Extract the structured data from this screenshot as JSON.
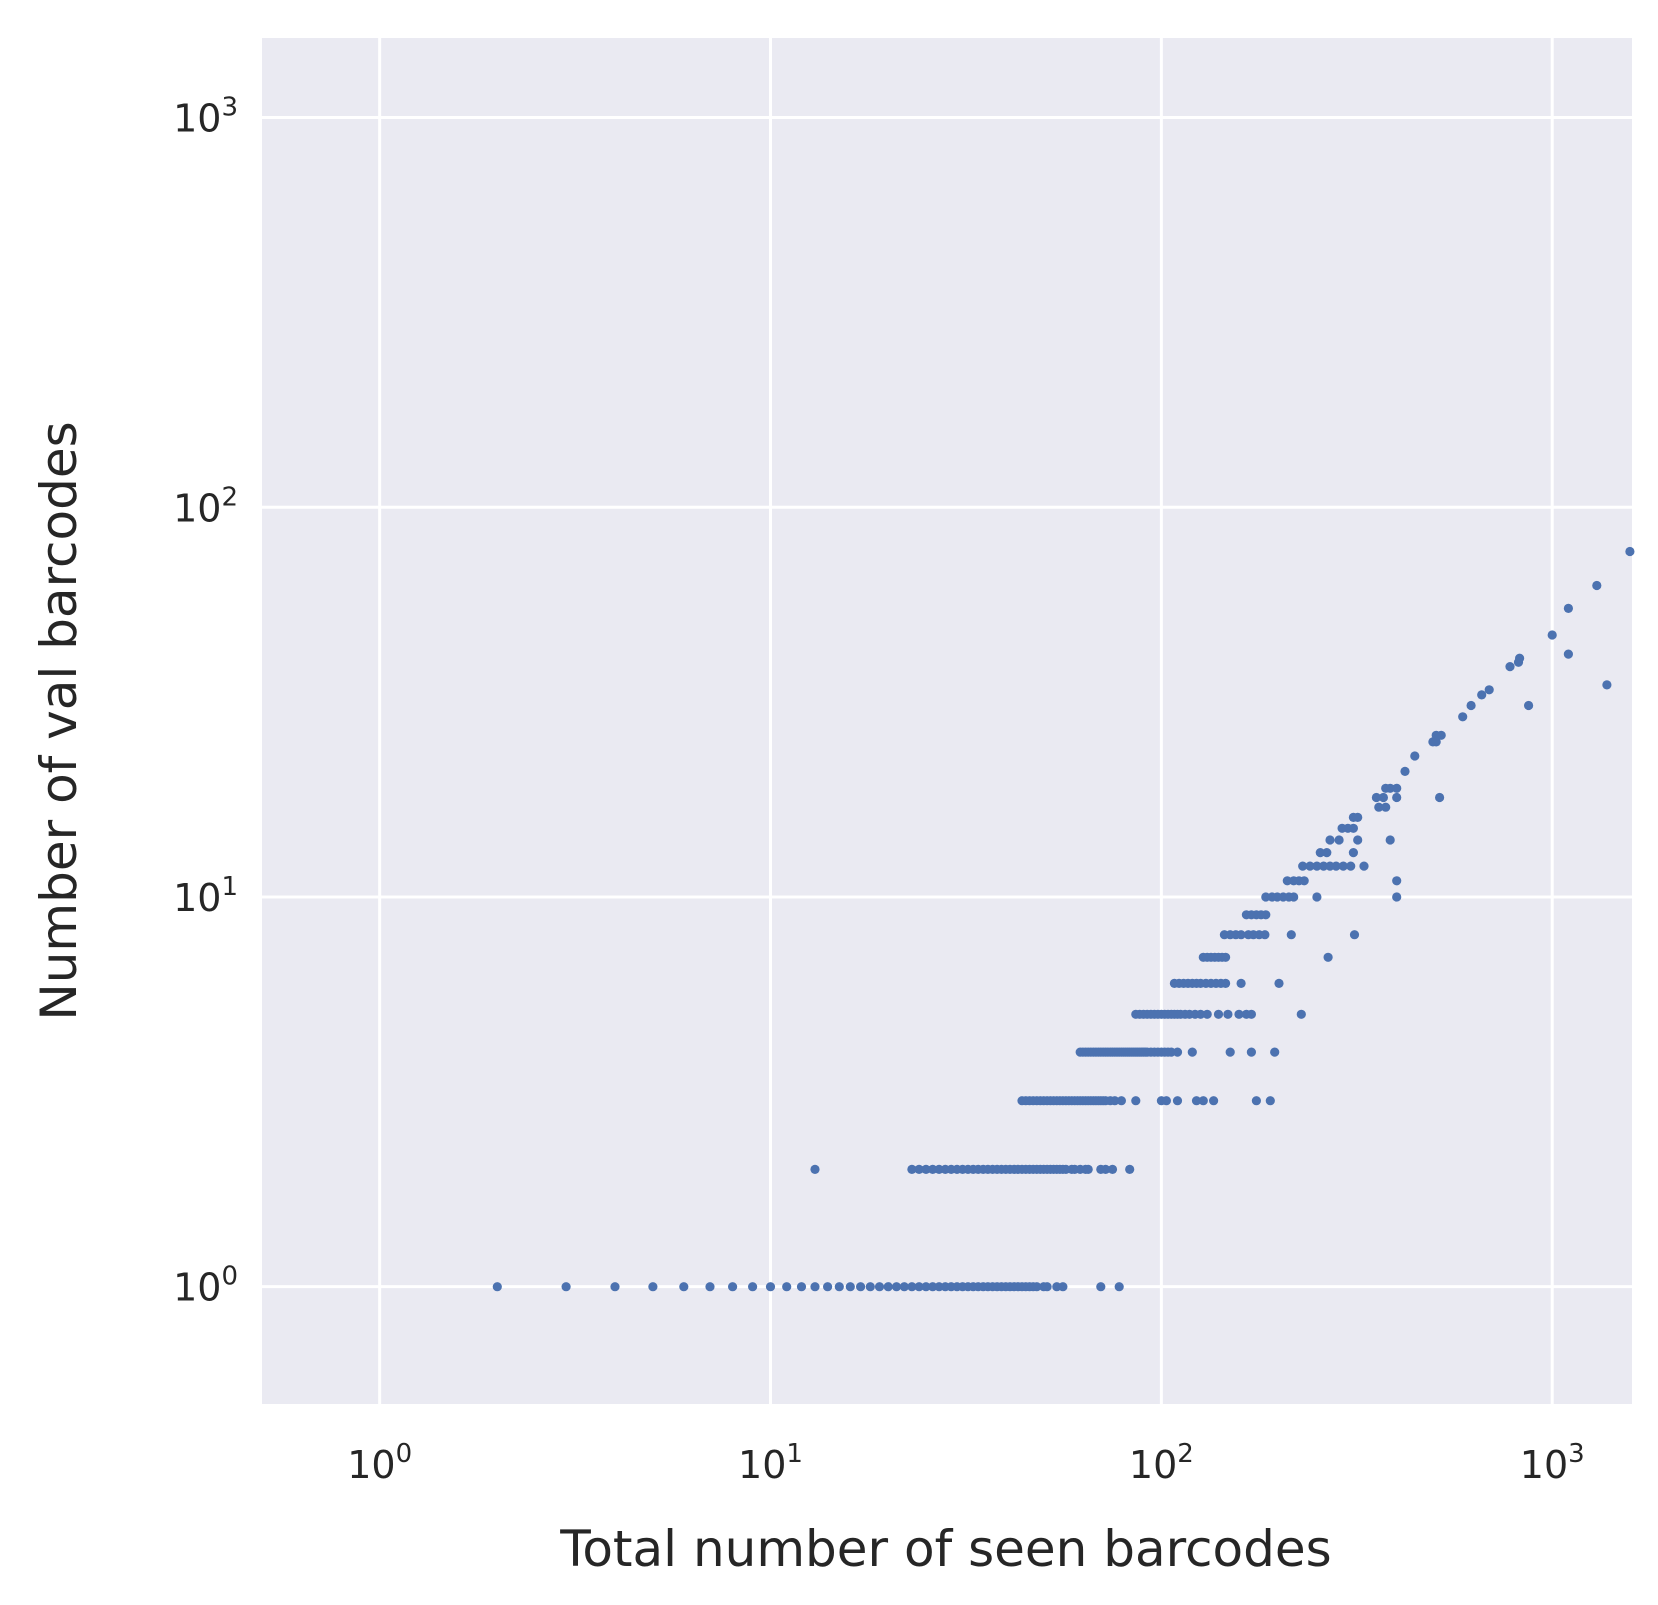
{
  "chart_data": {
    "type": "scatter",
    "xlabel": "Total number of seen barcodes",
    "ylabel": "Number of val barcodes",
    "xscale": "log",
    "yscale": "log",
    "xlim": [
      0.5,
      1600
    ],
    "ylim": [
      0.5,
      1600
    ],
    "grid": true,
    "background_color": "#EAEAF2",
    "grid_color": "#FFFFFF",
    "marker_color": "#4C72B0",
    "x_ticks": [
      {
        "value": 1,
        "base": "10",
        "exp": "0"
      },
      {
        "value": 10,
        "base": "10",
        "exp": "1"
      },
      {
        "value": 100,
        "base": "10",
        "exp": "2"
      },
      {
        "value": 1000,
        "base": "10",
        "exp": "3"
      }
    ],
    "y_ticks": [
      {
        "value": 1,
        "base": "10",
        "exp": "0"
      },
      {
        "value": 10,
        "base": "10",
        "exp": "1"
      },
      {
        "value": 100,
        "base": "10",
        "exp": "2"
      },
      {
        "value": 1000,
        "base": "10",
        "exp": "3"
      }
    ],
    "points": [
      [
        2,
        1
      ],
      [
        3,
        1
      ],
      [
        4,
        1
      ],
      [
        5,
        1
      ],
      [
        6,
        1
      ],
      [
        7,
        1
      ],
      [
        8,
        1
      ],
      [
        9,
        1
      ],
      [
        10,
        1
      ],
      [
        11,
        1
      ],
      [
        12,
        1
      ],
      [
        13,
        1
      ],
      [
        14,
        1
      ],
      [
        15,
        1
      ],
      [
        16,
        1
      ],
      [
        17,
        1
      ],
      [
        18,
        1
      ],
      [
        19,
        1
      ],
      [
        20,
        1
      ],
      [
        21,
        1
      ],
      [
        22,
        1
      ],
      [
        23,
        1
      ],
      [
        24,
        1
      ],
      [
        25,
        1
      ],
      [
        26,
        1
      ],
      [
        27,
        1
      ],
      [
        28,
        1
      ],
      [
        29,
        1
      ],
      [
        30,
        1
      ],
      [
        31,
        1
      ],
      [
        32,
        1
      ],
      [
        33,
        1
      ],
      [
        34,
        1
      ],
      [
        35,
        1
      ],
      [
        36,
        1
      ],
      [
        37,
        1
      ],
      [
        38,
        1
      ],
      [
        39,
        1
      ],
      [
        40,
        1
      ],
      [
        41,
        1
      ],
      [
        42,
        1
      ],
      [
        43,
        1
      ],
      [
        44,
        1
      ],
      [
        45,
        1
      ],
      [
        46,
        1
      ],
      [
        47,
        1
      ],
      [
        48,
        1
      ],
      [
        50,
        1
      ],
      [
        51,
        1
      ],
      [
        54,
        1
      ],
      [
        56,
        1
      ],
      [
        70,
        1
      ],
      [
        78,
        1
      ],
      [
        13,
        2
      ],
      [
        23,
        2
      ],
      [
        24,
        2
      ],
      [
        25,
        2
      ],
      [
        26,
        2
      ],
      [
        27,
        2
      ],
      [
        28,
        2
      ],
      [
        29,
        2
      ],
      [
        30,
        2
      ],
      [
        31,
        2
      ],
      [
        32,
        2
      ],
      [
        33,
        2
      ],
      [
        34,
        2
      ],
      [
        35,
        2
      ],
      [
        36,
        2
      ],
      [
        37,
        2
      ],
      [
        38,
        2
      ],
      [
        39,
        2
      ],
      [
        40,
        2
      ],
      [
        41,
        2
      ],
      [
        42,
        2
      ],
      [
        43,
        2
      ],
      [
        44,
        2
      ],
      [
        45,
        2
      ],
      [
        46,
        2
      ],
      [
        47,
        2
      ],
      [
        48,
        2
      ],
      [
        49,
        2
      ],
      [
        50,
        2
      ],
      [
        51,
        2
      ],
      [
        52,
        2
      ],
      [
        53,
        2
      ],
      [
        54,
        2
      ],
      [
        55,
        2
      ],
      [
        56,
        2
      ],
      [
        57,
        2
      ],
      [
        59,
        2
      ],
      [
        60,
        2
      ],
      [
        62,
        2
      ],
      [
        64,
        2
      ],
      [
        65,
        2
      ],
      [
        70,
        2
      ],
      [
        72,
        2
      ],
      [
        75,
        2
      ],
      [
        83,
        2
      ],
      [
        44,
        3
      ],
      [
        45,
        3
      ],
      [
        46,
        3
      ],
      [
        47,
        3
      ],
      [
        48,
        3
      ],
      [
        49,
        3
      ],
      [
        50,
        3
      ],
      [
        51,
        3
      ],
      [
        52,
        3
      ],
      [
        53,
        3
      ],
      [
        54,
        3
      ],
      [
        55,
        3
      ],
      [
        56,
        3
      ],
      [
        57,
        3
      ],
      [
        58,
        3
      ],
      [
        59,
        3
      ],
      [
        60,
        3
      ],
      [
        61,
        3
      ],
      [
        62,
        3
      ],
      [
        63,
        3
      ],
      [
        64,
        3
      ],
      [
        65,
        3
      ],
      [
        66,
        3
      ],
      [
        67,
        3
      ],
      [
        68,
        3
      ],
      [
        69,
        3
      ],
      [
        70,
        3
      ],
      [
        71,
        3
      ],
      [
        72,
        3
      ],
      [
        74,
        3
      ],
      [
        76,
        3
      ],
      [
        79,
        3
      ],
      [
        86,
        3
      ],
      [
        100,
        3
      ],
      [
        103,
        3
      ],
      [
        110,
        3
      ],
      [
        123,
        3
      ],
      [
        128,
        3
      ],
      [
        136,
        3
      ],
      [
        175,
        3
      ],
      [
        190,
        3
      ],
      [
        62,
        4
      ],
      [
        63,
        4
      ],
      [
        64,
        4
      ],
      [
        65,
        4
      ],
      [
        66,
        4
      ],
      [
        67,
        4
      ],
      [
        68,
        4
      ],
      [
        69,
        4
      ],
      [
        70,
        4
      ],
      [
        71,
        4
      ],
      [
        72,
        4
      ],
      [
        73,
        4
      ],
      [
        74,
        4
      ],
      [
        75,
        4
      ],
      [
        76,
        4
      ],
      [
        77,
        4
      ],
      [
        78,
        4
      ],
      [
        79,
        4
      ],
      [
        80,
        4
      ],
      [
        81,
        4
      ],
      [
        82,
        4
      ],
      [
        83,
        4
      ],
      [
        84,
        4
      ],
      [
        85,
        4
      ],
      [
        86,
        4
      ],
      [
        87,
        4
      ],
      [
        88,
        4
      ],
      [
        89,
        4
      ],
      [
        90,
        4
      ],
      [
        91,
        4
      ],
      [
        92,
        4
      ],
      [
        94,
        4
      ],
      [
        96,
        4
      ],
      [
        98,
        4
      ],
      [
        100,
        4
      ],
      [
        102,
        4
      ],
      [
        104,
        4
      ],
      [
        106,
        4
      ],
      [
        110,
        4
      ],
      [
        120,
        4
      ],
      [
        150,
        4
      ],
      [
        170,
        4
      ],
      [
        195,
        4
      ],
      [
        86,
        5
      ],
      [
        88,
        5
      ],
      [
        90,
        5
      ],
      [
        92,
        5
      ],
      [
        94,
        5
      ],
      [
        96,
        5
      ],
      [
        98,
        5
      ],
      [
        100,
        5
      ],
      [
        102,
        5
      ],
      [
        104,
        5
      ],
      [
        106,
        5
      ],
      [
        108,
        5
      ],
      [
        110,
        5
      ],
      [
        112,
        5
      ],
      [
        115,
        5
      ],
      [
        118,
        5
      ],
      [
        122,
        5
      ],
      [
        126,
        5
      ],
      [
        131,
        5
      ],
      [
        140,
        5
      ],
      [
        148,
        5
      ],
      [
        158,
        5
      ],
      [
        165,
        5
      ],
      [
        170,
        5
      ],
      [
        228,
        5
      ],
      [
        108,
        6
      ],
      [
        111,
        6
      ],
      [
        114,
        6
      ],
      [
        117,
        6
      ],
      [
        120,
        6
      ],
      [
        123,
        6
      ],
      [
        126,
        6
      ],
      [
        130,
        6
      ],
      [
        134,
        6
      ],
      [
        138,
        6
      ],
      [
        142,
        6
      ],
      [
        146,
        6
      ],
      [
        160,
        6
      ],
      [
        200,
        6
      ],
      [
        128,
        7
      ],
      [
        131,
        7
      ],
      [
        134,
        7
      ],
      [
        137,
        7
      ],
      [
        140,
        7
      ],
      [
        143,
        7
      ],
      [
        146,
        7
      ],
      [
        267,
        7
      ],
      [
        145,
        8
      ],
      [
        150,
        8
      ],
      [
        155,
        8
      ],
      [
        160,
        8
      ],
      [
        167,
        8
      ],
      [
        172,
        8
      ],
      [
        178,
        8
      ],
      [
        184,
        8
      ],
      [
        215,
        8
      ],
      [
        312,
        8
      ],
      [
        165,
        9
      ],
      [
        170,
        9
      ],
      [
        175,
        9
      ],
      [
        180,
        9
      ],
      [
        185,
        9
      ],
      [
        185,
        10
      ],
      [
        192,
        10
      ],
      [
        198,
        10
      ],
      [
        205,
        10
      ],
      [
        212,
        10
      ],
      [
        218,
        10
      ],
      [
        250,
        10
      ],
      [
        400,
        10
      ],
      [
        210,
        11
      ],
      [
        218,
        11
      ],
      [
        225,
        11
      ],
      [
        232,
        11
      ],
      [
        400,
        11
      ],
      [
        230,
        12
      ],
      [
        240,
        12
      ],
      [
        250,
        12
      ],
      [
        260,
        12
      ],
      [
        270,
        12
      ],
      [
        280,
        12
      ],
      [
        292,
        12
      ],
      [
        305,
        12
      ],
      [
        330,
        12
      ],
      [
        255,
        13
      ],
      [
        265,
        13
      ],
      [
        310,
        13
      ],
      [
        270,
        14
      ],
      [
        285,
        14
      ],
      [
        318,
        14
      ],
      [
        385,
        14
      ],
      [
        290,
        15
      ],
      [
        300,
        15
      ],
      [
        310,
        15
      ],
      [
        310,
        16
      ],
      [
        318,
        16
      ],
      [
        360,
        17
      ],
      [
        375,
        17
      ],
      [
        355,
        18
      ],
      [
        370,
        18
      ],
      [
        400,
        18
      ],
      [
        515,
        18
      ],
      [
        375,
        19
      ],
      [
        385,
        19
      ],
      [
        400,
        19
      ],
      [
        420,
        21
      ],
      [
        445,
        23
      ],
      [
        495,
        25
      ],
      [
        505,
        25
      ],
      [
        520,
        26
      ],
      [
        505,
        26
      ],
      [
        590,
        29
      ],
      [
        620,
        31
      ],
      [
        870,
        31
      ],
      [
        660,
        33
      ],
      [
        690,
        34
      ],
      [
        780,
        39
      ],
      [
        820,
        40
      ],
      [
        825,
        41
      ],
      [
        1000,
        47
      ],
      [
        1100,
        42
      ],
      [
        1100,
        55
      ],
      [
        1300,
        63
      ],
      [
        1380,
        35
      ],
      [
        1580,
        77
      ]
    ]
  }
}
